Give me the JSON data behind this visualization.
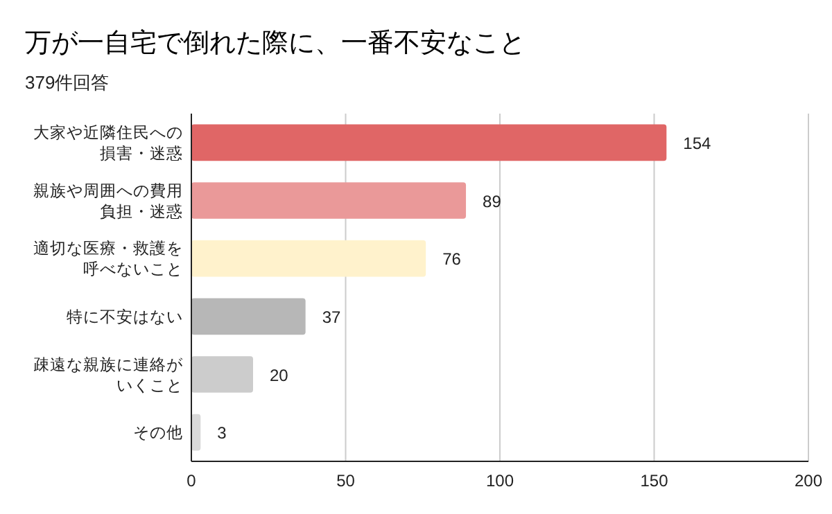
{
  "chart_data": {
    "type": "bar",
    "orientation": "horizontal",
    "title": "万が一自宅で倒れた際に、一番不安なこと",
    "subtitle": "379件回答",
    "categories": [
      "大家や近隣住民への損害・迷惑",
      "親族や周囲への費用負担・迷惑",
      "適切な医療・救護を呼べないこと",
      "特に不安はない",
      "疎遠な親族に連絡がいくこと",
      "その他"
    ],
    "values": [
      154,
      89,
      76,
      37,
      20,
      3
    ],
    "colors": [
      "#e06666",
      "#ea9999",
      "#fff2cc",
      "#b7b7b7",
      "#cccccc",
      "#d9d9d9"
    ],
    "xlim": [
      0,
      200
    ],
    "xticks": [
      0,
      50,
      100,
      150,
      200
    ],
    "grid": "x",
    "data_labels": true
  }
}
